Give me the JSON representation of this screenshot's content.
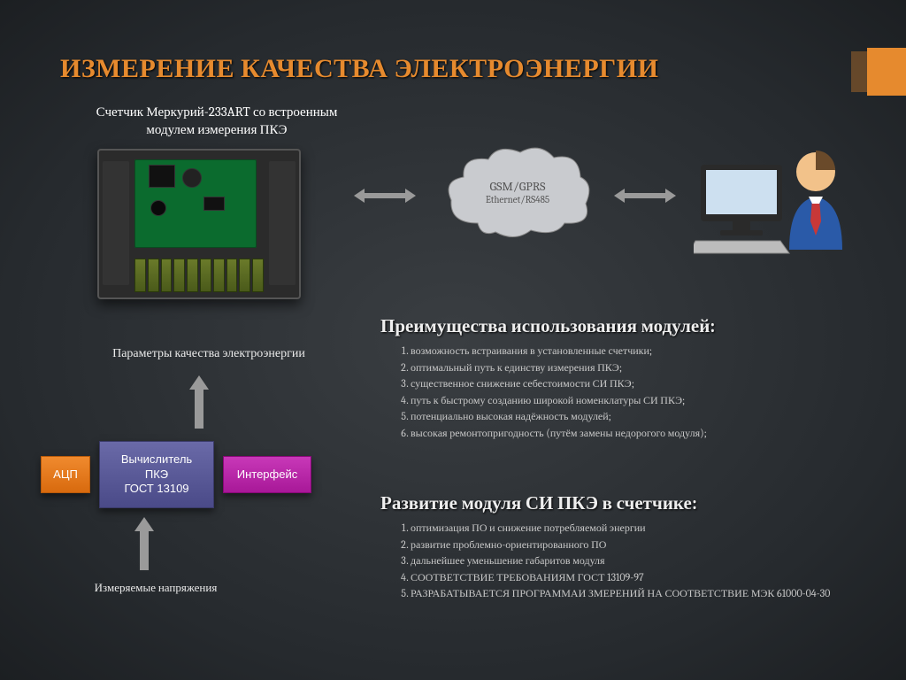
{
  "title": "ИЗМЕРЕНИЕ КАЧЕСТВА ЭЛЕКТРОЭНЕРГИИ",
  "title_color": "#e68a2e",
  "accent_color": "#e68a2e",
  "subtitle": "Счетчик Меркурий-233ART  со встроенным  модулем измерения  ПКЭ",
  "cloud": {
    "line1": "GSM/GPRS",
    "line2": "Ethernet/RS485",
    "fill": "#c9cbcf",
    "text_color": "#555555"
  },
  "param_label": "Параметры качества электроэнергии",
  "blocks": {
    "adc": {
      "label": "АЦП",
      "bg": "#e68a2e"
    },
    "calc": {
      "line1": "Вычислитель",
      "line2": "ПКЭ",
      "line3": "ГОСТ 13109",
      "bg": "#5a5a98"
    },
    "iface": {
      "label": "Интерфейс",
      "bg": "#b828a8"
    }
  },
  "measured_label": "Измеряемые напряжения",
  "advantages": {
    "heading": "Преимущества использования модулей:",
    "items": [
      "возможность встраивания в установленные счетчики;",
      "оптимальный путь к единству измерения ПКЭ;",
      "существенное снижение себестоимости СИ ПКЭ;",
      " путь к быстрому созданию широкой номенклатуры СИ ПКЭ;",
      " потенциально высокая надёжность модулей;",
      "высокая ремонтопригодность (путём замены недорогого модуля);"
    ]
  },
  "development": {
    "heading": "Развитие модуля СИ ПКЭ в счетчике:",
    "items": [
      "оптимизация ПО и снижение потребляемой энергии",
      "развитие проблемно-ориентированного ПО",
      "дальнейшее уменьшение габаритов модуля",
      "СООТВЕТСТВИЕ ТРЕБОВАНИЯМ ГОСТ 13109-97",
      "РАЗРАБАТЫВАЕТСЯ ПРОГРАММАИ ЗМЕРЕНИЙ НА СООТВЕТСТВИЕ  МЭК 61000-04-30"
    ]
  },
  "arrows": {
    "fill": "#9a9a9a"
  },
  "operator": {
    "head": "#f2c28a",
    "body": "#2a5aa8",
    "tie": "#c83838",
    "monitor_frame": "#2a2a2a",
    "monitor_screen": "#cde0f0"
  }
}
